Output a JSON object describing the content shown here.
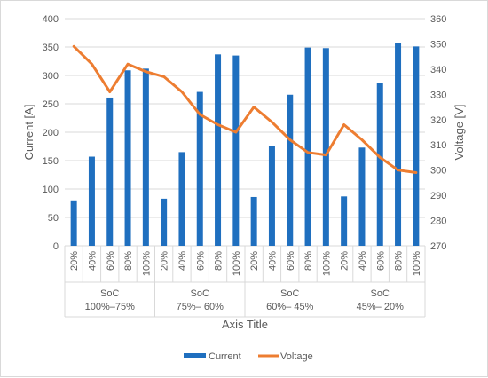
{
  "chart_data": {
    "type": "bar-line-combo",
    "x_title": "Axis Title",
    "y_left_title": "Current [A]",
    "y_right_title": "Voltage [V]",
    "y_left_range": [
      0,
      400
    ],
    "y_left_ticks": [
      "0",
      "50",
      "100",
      "150",
      "200",
      "250",
      "300",
      "350",
      "400"
    ],
    "y_right_range": [
      270,
      360
    ],
    "y_right_ticks": [
      "270",
      "280",
      "290",
      "300",
      "310",
      "320",
      "330",
      "340",
      "350",
      "360"
    ],
    "grid": "horizontal",
    "legend_position": "bottom",
    "categories": [
      "20%",
      "40%",
      "60%",
      "80%",
      "100%",
      "20%",
      "40%",
      "60%",
      "80%",
      "100%",
      "20%",
      "40%",
      "60%",
      "80%",
      "100%",
      "20%",
      "40%",
      "60%",
      "80%",
      "100%"
    ],
    "groups": [
      {
        "line1": "SoC",
        "line2": "100%–75%"
      },
      {
        "line1": "SoC",
        "line2": "75%– 60%"
      },
      {
        "line1": "SoC",
        "line2": "60%– 45%"
      },
      {
        "line1": "SoC",
        "line2": "45%– 20%"
      }
    ],
    "series": [
      {
        "name": "Current",
        "type": "bar",
        "axis": "left",
        "color": "#1f6fbf",
        "values": [
          80,
          157,
          261,
          309,
          312,
          83,
          165,
          271,
          337,
          335,
          86,
          176,
          266,
          349,
          348,
          87,
          173,
          286,
          357,
          351
        ]
      },
      {
        "name": "Voltage",
        "type": "line",
        "axis": "right",
        "color": "#ed7d31",
        "values": [
          349,
          342,
          331,
          342,
          339,
          337,
          331,
          322,
          318,
          315,
          325,
          319,
          312,
          307,
          306,
          318,
          312,
          305,
          300,
          299
        ]
      }
    ]
  }
}
